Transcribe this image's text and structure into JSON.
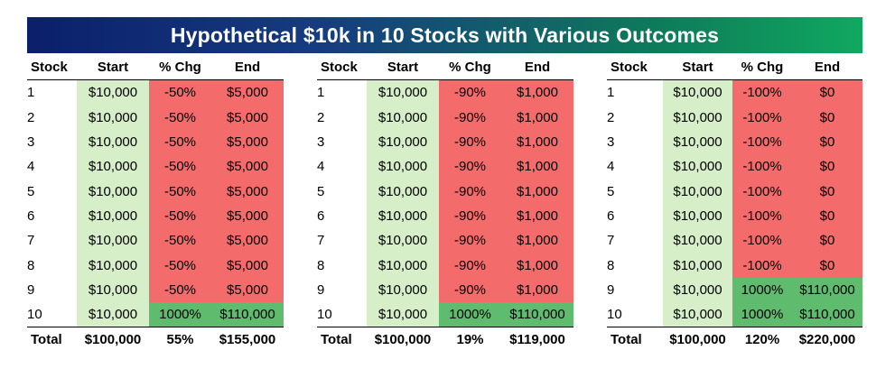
{
  "title": "Hypothetical $10k in 10 Stocks with Various Outcomes",
  "headers": {
    "stock": "Stock",
    "start": "Start",
    "chg": "% Chg",
    "end": "End"
  },
  "colors": {
    "start_fill": "#d6efc9",
    "loss_fill": "#f36b6b",
    "gain_fill": "#5fbc6f",
    "title_gradient_left": "#0b1f6a",
    "title_gradient_right": "#10a860"
  },
  "tables": [
    {
      "rows": [
        {
          "stock": "1",
          "start": "$10,000",
          "chg": "-50%",
          "end": "$5,000",
          "outcome": "loss"
        },
        {
          "stock": "2",
          "start": "$10,000",
          "chg": "-50%",
          "end": "$5,000",
          "outcome": "loss"
        },
        {
          "stock": "3",
          "start": "$10,000",
          "chg": "-50%",
          "end": "$5,000",
          "outcome": "loss"
        },
        {
          "stock": "4",
          "start": "$10,000",
          "chg": "-50%",
          "end": "$5,000",
          "outcome": "loss"
        },
        {
          "stock": "5",
          "start": "$10,000",
          "chg": "-50%",
          "end": "$5,000",
          "outcome": "loss"
        },
        {
          "stock": "6",
          "start": "$10,000",
          "chg": "-50%",
          "end": "$5,000",
          "outcome": "loss"
        },
        {
          "stock": "7",
          "start": "$10,000",
          "chg": "-50%",
          "end": "$5,000",
          "outcome": "loss"
        },
        {
          "stock": "8",
          "start": "$10,000",
          "chg": "-50%",
          "end": "$5,000",
          "outcome": "loss"
        },
        {
          "stock": "9",
          "start": "$10,000",
          "chg": "-50%",
          "end": "$5,000",
          "outcome": "loss"
        },
        {
          "stock": "10",
          "start": "$10,000",
          "chg": "1000%",
          "end": "$110,000",
          "outcome": "gain"
        }
      ],
      "total": {
        "label": "Total",
        "start": "$100,000",
        "chg": "55%",
        "end": "$155,000"
      }
    },
    {
      "rows": [
        {
          "stock": "1",
          "start": "$10,000",
          "chg": "-90%",
          "end": "$1,000",
          "outcome": "loss"
        },
        {
          "stock": "2",
          "start": "$10,000",
          "chg": "-90%",
          "end": "$1,000",
          "outcome": "loss"
        },
        {
          "stock": "3",
          "start": "$10,000",
          "chg": "-90%",
          "end": "$1,000",
          "outcome": "loss"
        },
        {
          "stock": "4",
          "start": "$10,000",
          "chg": "-90%",
          "end": "$1,000",
          "outcome": "loss"
        },
        {
          "stock": "5",
          "start": "$10,000",
          "chg": "-90%",
          "end": "$1,000",
          "outcome": "loss"
        },
        {
          "stock": "6",
          "start": "$10,000",
          "chg": "-90%",
          "end": "$1,000",
          "outcome": "loss"
        },
        {
          "stock": "7",
          "start": "$10,000",
          "chg": "-90%",
          "end": "$1,000",
          "outcome": "loss"
        },
        {
          "stock": "8",
          "start": "$10,000",
          "chg": "-90%",
          "end": "$1,000",
          "outcome": "loss"
        },
        {
          "stock": "9",
          "start": "$10,000",
          "chg": "-90%",
          "end": "$1,000",
          "outcome": "loss"
        },
        {
          "stock": "10",
          "start": "$10,000",
          "chg": "1000%",
          "end": "$110,000",
          "outcome": "gain"
        }
      ],
      "total": {
        "label": "Total",
        "start": "$100,000",
        "chg": "19%",
        "end": "$119,000"
      }
    },
    {
      "rows": [
        {
          "stock": "1",
          "start": "$10,000",
          "chg": "-100%",
          "end": "$0",
          "outcome": "loss"
        },
        {
          "stock": "2",
          "start": "$10,000",
          "chg": "-100%",
          "end": "$0",
          "outcome": "loss"
        },
        {
          "stock": "3",
          "start": "$10,000",
          "chg": "-100%",
          "end": "$0",
          "outcome": "loss"
        },
        {
          "stock": "4",
          "start": "$10,000",
          "chg": "-100%",
          "end": "$0",
          "outcome": "loss"
        },
        {
          "stock": "5",
          "start": "$10,000",
          "chg": "-100%",
          "end": "$0",
          "outcome": "loss"
        },
        {
          "stock": "6",
          "start": "$10,000",
          "chg": "-100%",
          "end": "$0",
          "outcome": "loss"
        },
        {
          "stock": "7",
          "start": "$10,000",
          "chg": "-100%",
          "end": "$0",
          "outcome": "loss"
        },
        {
          "stock": "8",
          "start": "$10,000",
          "chg": "-100%",
          "end": "$0",
          "outcome": "loss"
        },
        {
          "stock": "9",
          "start": "$10,000",
          "chg": "1000%",
          "end": "$110,000",
          "outcome": "gain"
        },
        {
          "stock": "10",
          "start": "$10,000",
          "chg": "1000%",
          "end": "$110,000",
          "outcome": "gain"
        }
      ],
      "total": {
        "label": "Total",
        "start": "$100,000",
        "chg": "120%",
        "end": "$220,000"
      }
    }
  ]
}
